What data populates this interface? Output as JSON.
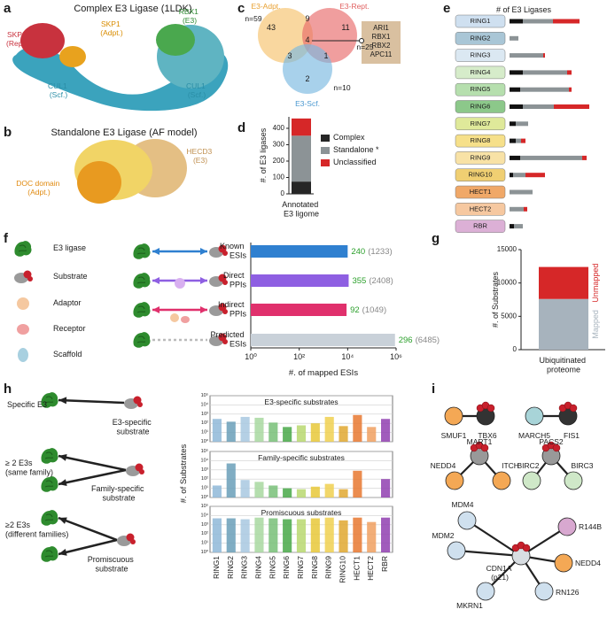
{
  "panel_labels": [
    "a",
    "b",
    "c",
    "d",
    "e",
    "f",
    "g",
    "h",
    "i"
  ],
  "panel_a": {
    "title": "Complex E3 Ligase (1LDK)",
    "skp2": "SKP2\n(Rept.)",
    "skp1": "SKP1\n(Adpt.)",
    "rbx1": "RBX1\n(E3)",
    "cul1_left": "CUL1\n(Scf.)",
    "cul1_right": "CUL1\n(Scf.)"
  },
  "panel_b": {
    "title": "Standalone E3 Ligase (AF model)",
    "hecd3": "HECD3\n(E3)",
    "doc": "DOC domain\n(Adpt.)"
  },
  "panel_c": {
    "sets": [
      {
        "name": "E3-Adpt.",
        "n": "n=59"
      },
      {
        "name": "E3-Rept.",
        "n": "n=25"
      },
      {
        "name": "E3-Scf.",
        "n": "n=10"
      }
    ],
    "regions": {
      "adpt": 43,
      "adpt_rept": 9,
      "rept": 11,
      "all": 4,
      "adpt_scf": 3,
      "rept_scf": 1,
      "scf": 2
    },
    "core": [
      "ARI1",
      "RBX1",
      "RBX2",
      "APC11"
    ]
  },
  "panel_f": {
    "legend": [
      "E3 ligase",
      "Substrate",
      "Adaptor",
      "Receptor",
      "Scaffold"
    ]
  },
  "panel_h": {
    "ylabel": "#. of Substrates",
    "cases": [
      {
        "e3": "Specific E3",
        "substrate": "E3-specific\nsubstrate"
      },
      {
        "e3": "≥ 2 E3s\n(same family)",
        "substrate": "Family-specific\nsubstrate"
      },
      {
        "e3": "≥2 E3s\n(different families)",
        "substrate": "Promiscuous\nsubstrate"
      }
    ]
  },
  "panel_i": {
    "nodes": [
      "SMUF1",
      "TBX6",
      "MARCH5",
      "FIS1",
      "MART1",
      "NEDD4",
      "ITCH",
      "PACS2",
      "BIRC2",
      "BIRC3",
      "CDN1A\n(p21)",
      "MDM4",
      "MDM2",
      "R144B",
      "NEDD4",
      "RN126",
      "MKRN1"
    ]
  },
  "chart_data": [
    {
      "type": "stacked_bar",
      "ylabel": "#. of E3 ligases",
      "categories": [
        "Annotated\nE3 ligome"
      ],
      "series": [
        {
          "name": "Complex",
          "color": "#262626",
          "values": [
            75
          ]
        },
        {
          "name": "Standalone *",
          "color": "#8c9396",
          "values": [
            280
          ]
        },
        {
          "name": "Unclassified",
          "color": "#d62728",
          "values": [
            105
          ]
        }
      ],
      "ylim": [
        0,
        470
      ],
      "yticks": [
        0,
        100,
        200,
        300,
        400
      ],
      "legend": "right"
    },
    {
      "type": "stacked_hbar",
      "title": "# of E3 Ligases",
      "categories": [
        "RING1",
        "RING2",
        "RING3",
        "RING4",
        "RING5",
        "RING6",
        "RING7",
        "RING8",
        "RING9",
        "RING10",
        "HECT1",
        "HECT2",
        "RBR"
      ],
      "category_colors": [
        "#cfe0f0",
        "#a9c6d6",
        "#dbe8f2",
        "#d6ecca",
        "#b6dfae",
        "#8cc88a",
        "#dfe99a",
        "#f6e08a",
        "#f8e2a6",
        "#f0cf72",
        "#f0a868",
        "#f6c8a0",
        "#dcb0d6"
      ],
      "series": [
        {
          "color": "#111111",
          "values": [
            15,
            0,
            0,
            15,
            12,
            15,
            7,
            7,
            12,
            4,
            0,
            0,
            5
          ]
        },
        {
          "color": "#8c9396",
          "values": [
            34,
            10,
            38,
            50,
            55,
            35,
            14,
            6,
            70,
            14,
            26,
            16,
            10
          ]
        },
        {
          "color": "#d62728",
          "values": [
            30,
            0,
            2,
            5,
            3,
            40,
            0,
            5,
            5,
            22,
            0,
            4,
            0
          ]
        }
      ]
    },
    {
      "type": "hbar",
      "log": true,
      "xlabel": "#. of mapped ESIs",
      "categories": [
        "Known\nESIs",
        "Direct\nPPIs",
        "Indirect\nPPIs",
        "Predicted\nESIs"
      ],
      "values": [
        10000,
        11000,
        9000,
        900000
      ],
      "colors": [
        "#2f80d0",
        "#8e5fe2",
        "#e0306c",
        "#c9d1d9"
      ],
      "annotations": [
        240,
        355,
        92,
        296
      ],
      "annotation_color": "#2ca02c",
      "totals": [
        "(1233)",
        "(2408)",
        "(1049)",
        "(6485)"
      ],
      "totals_color": "#888888",
      "xlim": [
        1,
        1000000
      ],
      "xticks": [
        {
          "value": 1,
          "label": "10⁰"
        },
        {
          "value": 100,
          "label": "10²"
        },
        {
          "value": 10000,
          "label": "10⁴"
        },
        {
          "value": 1000000,
          "label": "10⁶"
        }
      ]
    },
    {
      "type": "stacked_bar",
      "ylabel": "#. of Substrates",
      "categories": [
        "Ubiquitinated\nproteome"
      ],
      "series": [
        {
          "name": "Mapped",
          "color": "#a7b3bd",
          "values": [
            7600
          ]
        },
        {
          "name": "Unmapped",
          "color": "#d62728",
          "values": [
            4800
          ]
        }
      ],
      "ylim": [
        0,
        15000
      ],
      "yticks": [
        0,
        5000,
        10000,
        15000
      ],
      "legend": "beside"
    },
    {
      "type": "bar",
      "log": true,
      "grid": true,
      "title": "E3-specific substrates",
      "values": [
        300,
        150,
        500,
        400,
        120,
        40,
        60,
        100,
        500,
        50,
        800,
        40,
        300
      ],
      "colors": [
        "#8fb8d8",
        "#6a9fb8",
        "#a8c8e0",
        "#a8d8a0",
        "#78c078",
        "#48a848",
        "#b8d870",
        "#e8c838",
        "#f0d050",
        "#e0a830",
        "#e87830",
        "#f0a060",
        "#9040b0"
      ],
      "ylim": [
        1,
        100000
      ],
      "yticks": [
        {
          "value": 1,
          "label": "10⁰"
        },
        {
          "value": 10,
          "label": "10¹"
        },
        {
          "value": 100,
          "label": "10²"
        },
        {
          "value": 1000,
          "label": "10³"
        },
        {
          "value": 10000,
          "label": "10⁴"
        },
        {
          "value": 100000,
          "label": "10⁵"
        }
      ]
    },
    {
      "type": "bar",
      "log": true,
      "grid": true,
      "title": "Family-specific substrates",
      "values": [
        20,
        5000,
        80,
        50,
        20,
        10,
        8,
        15,
        30,
        8,
        800,
        1,
        100
      ],
      "colors": [
        "#8fb8d8",
        "#6a9fb8",
        "#a8c8e0",
        "#a8d8a0",
        "#78c078",
        "#48a848",
        "#b8d870",
        "#e8c838",
        "#f0d050",
        "#e0a830",
        "#e87830",
        "#f0a060",
        "#9040b0"
      ],
      "ylim": [
        1,
        100000
      ],
      "yticks": [
        {
          "value": 1,
          "label": "10⁰"
        },
        {
          "value": 10,
          "label": "10¹"
        },
        {
          "value": 100,
          "label": "10²"
        },
        {
          "value": 1000,
          "label": "10³"
        },
        {
          "value": 10000,
          "label": "10⁴"
        },
        {
          "value": 100000,
          "label": "10⁵"
        }
      ]
    },
    {
      "type": "bar",
      "log": true,
      "grid": true,
      "title": "Promiscuous substrates",
      "categories": [
        "RING1",
        "RING2",
        "RING3",
        "RING4",
        "RING5",
        "RING6",
        "RING7",
        "RING8",
        "RING9",
        "RING10",
        "HECT1",
        "HECT2",
        "RBR"
      ],
      "values": [
        5000,
        5000,
        4000,
        6000,
        5000,
        4000,
        4000,
        5000,
        6000,
        3000,
        6000,
        2000,
        6000
      ],
      "colors": [
        "#8fb8d8",
        "#6a9fb8",
        "#a8c8e0",
        "#a8d8a0",
        "#78c078",
        "#48a848",
        "#b8d870",
        "#e8c838",
        "#f0d050",
        "#e0a830",
        "#e87830",
        "#f0a060",
        "#9040b0"
      ],
      "ylim": [
        1,
        100000
      ],
      "yticks": [
        {
          "value": 1,
          "label": "10⁰"
        },
        {
          "value": 10,
          "label": "10¹"
        },
        {
          "value": 100,
          "label": "10²"
        },
        {
          "value": 1000,
          "label": "10³"
        },
        {
          "value": 10000,
          "label": "10⁴"
        },
        {
          "value": 100000,
          "label": "10⁵"
        }
      ]
    }
  ]
}
